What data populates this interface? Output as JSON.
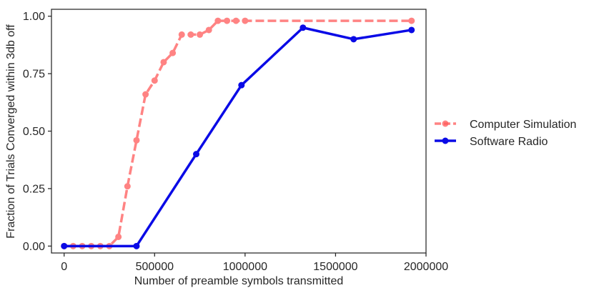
{
  "chart_data": {
    "type": "line",
    "title": "",
    "xlabel": "Number of preamble symbols transmitted",
    "ylabel": "Fraction of Trials Converged within 3db off",
    "xlim": [
      -70000,
      2000000
    ],
    "ylim": [
      -0.03,
      1.03
    ],
    "xticks": [
      0,
      500000,
      1000000,
      1500000,
      2000000
    ],
    "xtick_labels": [
      "0",
      "500000",
      "1000000",
      "1500000",
      "2000000"
    ],
    "yticks": [
      0.0,
      0.25,
      0.5,
      0.75,
      1.0
    ],
    "ytick_labels": [
      "0.00",
      "0.25",
      "0.50",
      "0.75",
      "1.00"
    ],
    "grid": false,
    "legend_position": "right-outside",
    "series": [
      {
        "name": "Computer Simulation",
        "color": "#ff5a5a",
        "line_style": "dashed",
        "opacity": 0.75,
        "x": [
          0,
          50000,
          100000,
          150000,
          200000,
          250000,
          300000,
          350000,
          400000,
          450000,
          500000,
          550000,
          600000,
          650000,
          700000,
          750000,
          800000,
          850000,
          900000,
          950000,
          1000000,
          1920000
        ],
        "y": [
          0.0,
          0.0,
          0.0,
          0.0,
          0.0,
          0.0,
          0.04,
          0.26,
          0.46,
          0.66,
          0.72,
          0.8,
          0.84,
          0.92,
          0.92,
          0.92,
          0.94,
          0.98,
          0.98,
          0.98,
          0.98,
          0.98
        ]
      },
      {
        "name": "Software Radio",
        "color": "#0a0ae6",
        "line_style": "solid",
        "opacity": 1.0,
        "x": [
          0,
          400000,
          730000,
          980000,
          1320000,
          1600000,
          1920000
        ],
        "y": [
          0.0,
          0.0,
          0.4,
          0.7,
          0.95,
          0.9,
          0.94
        ]
      }
    ]
  }
}
